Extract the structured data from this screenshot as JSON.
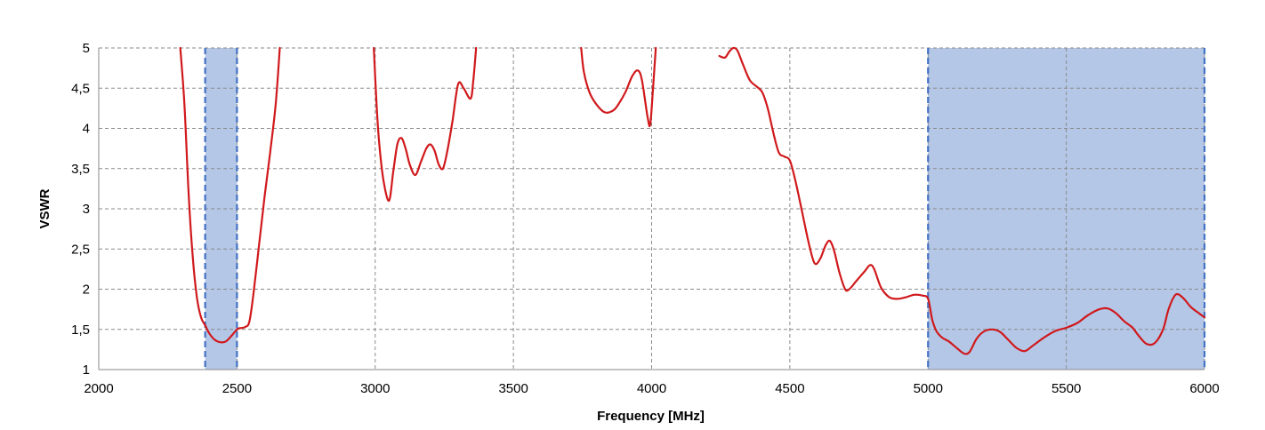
{
  "chart_data": {
    "type": "line",
    "title": "",
    "xlabel": "Frequency [MHz]",
    "ylabel": "VSWR",
    "xlim": [
      2000,
      6000
    ],
    "ylim": [
      1,
      5
    ],
    "x_ticks": [
      2000,
      2500,
      3000,
      3500,
      4000,
      4500,
      5000,
      5500,
      6000
    ],
    "x_tick_labels": [
      "2000",
      "2500",
      "3000",
      "3500",
      "4000",
      "4500",
      "5000",
      "5500",
      "6000"
    ],
    "y_ticks": [
      1,
      1.5,
      2,
      2.5,
      3,
      3.5,
      4,
      4.5,
      5
    ],
    "y_tick_labels": [
      "1",
      "1,5",
      "2",
      "2,5",
      "3",
      "3,5",
      "4",
      "4,5",
      "5"
    ],
    "grid": true,
    "grid_style": "dashed",
    "bands": [
      {
        "x": [
          2385,
          2500
        ],
        "color": "#b4c7e7",
        "edge_color": "#4472c4"
      },
      {
        "x": [
          5000,
          6000
        ],
        "color": "#b4c7e7",
        "edge_color": "#4472c4"
      }
    ],
    "series": [
      {
        "color": "#d0191c",
        "segments": [
          [
            [
              2295,
              5.0
            ],
            [
              2310,
              4.3
            ],
            [
              2325,
              3.2
            ],
            [
              2340,
              2.4
            ],
            [
              2355,
              1.9
            ],
            [
              2370,
              1.65
            ],
            [
              2385,
              1.55
            ],
            [
              2400,
              1.45
            ],
            [
              2420,
              1.37
            ],
            [
              2440,
              1.34
            ],
            [
              2460,
              1.35
            ],
            [
              2480,
              1.42
            ],
            [
              2495,
              1.48
            ],
            [
              2505,
              1.51
            ],
            [
              2530,
              1.53
            ],
            [
              2545,
              1.6
            ],
            [
              2560,
              1.95
            ],
            [
              2580,
              2.55
            ],
            [
              2600,
              3.15
            ],
            [
              2620,
              3.7
            ],
            [
              2640,
              4.3
            ],
            [
              2655,
              5.0
            ]
          ],
          [
            [
              2995,
              5.0
            ],
            [
              3005,
              4.3
            ],
            [
              3015,
              3.8
            ],
            [
              3030,
              3.35
            ],
            [
              3050,
              3.1
            ],
            [
              3065,
              3.45
            ],
            [
              3080,
              3.8
            ],
            [
              3095,
              3.88
            ],
            [
              3110,
              3.75
            ],
            [
              3125,
              3.55
            ],
            [
              3145,
              3.42
            ],
            [
              3165,
              3.58
            ],
            [
              3185,
              3.75
            ],
            [
              3200,
              3.8
            ],
            [
              3215,
              3.72
            ],
            [
              3230,
              3.55
            ],
            [
              3245,
              3.5
            ],
            [
              3260,
              3.7
            ],
            [
              3280,
              4.1
            ],
            [
              3300,
              4.55
            ],
            [
              3320,
              4.5
            ],
            [
              3345,
              4.37
            ],
            [
              3355,
              4.6
            ],
            [
              3365,
              5.0
            ]
          ],
          [
            [
              3745,
              5.0
            ],
            [
              3755,
              4.7
            ],
            [
              3775,
              4.45
            ],
            [
              3800,
              4.3
            ],
            [
              3830,
              4.2
            ],
            [
              3860,
              4.22
            ],
            [
              3880,
              4.3
            ],
            [
              3905,
              4.45
            ],
            [
              3930,
              4.65
            ],
            [
              3950,
              4.72
            ],
            [
              3965,
              4.6
            ],
            [
              3985,
              4.15
            ],
            [
              3995,
              4.05
            ],
            [
              4005,
              4.5
            ],
            [
              4015,
              5.0
            ]
          ],
          [
            [
              4245,
              4.9
            ],
            [
              4265,
              4.88
            ],
            [
              4280,
              4.95
            ],
            [
              4295,
              5.0
            ],
            [
              4310,
              4.97
            ],
            [
              4330,
              4.8
            ],
            [
              4355,
              4.6
            ],
            [
              4380,
              4.52
            ],
            [
              4400,
              4.45
            ],
            [
              4420,
              4.25
            ],
            [
              4440,
              3.95
            ],
            [
              4460,
              3.7
            ],
            [
              4480,
              3.65
            ],
            [
              4500,
              3.6
            ],
            [
              4520,
              3.35
            ],
            [
              4545,
              2.95
            ],
            [
              4570,
              2.55
            ],
            [
              4590,
              2.32
            ],
            [
              4610,
              2.38
            ],
            [
              4630,
              2.55
            ],
            [
              4645,
              2.6
            ],
            [
              4660,
              2.48
            ],
            [
              4680,
              2.2
            ],
            [
              4700,
              2.0
            ],
            [
              4715,
              2.0
            ],
            [
              4740,
              2.1
            ],
            [
              4770,
              2.22
            ],
            [
              4790,
              2.3
            ],
            [
              4805,
              2.25
            ],
            [
              4830,
              2.02
            ],
            [
              4860,
              1.9
            ],
            [
              4890,
              1.88
            ],
            [
              4920,
              1.9
            ],
            [
              4950,
              1.93
            ],
            [
              4980,
              1.92
            ],
            [
              5000,
              1.88
            ],
            [
              5015,
              1.62
            ],
            [
              5030,
              1.48
            ],
            [
              5050,
              1.4
            ],
            [
              5075,
              1.35
            ],
            [
              5100,
              1.28
            ],
            [
              5130,
              1.2
            ],
            [
              5150,
              1.22
            ],
            [
              5175,
              1.38
            ],
            [
              5200,
              1.47
            ],
            [
              5230,
              1.5
            ],
            [
              5260,
              1.47
            ],
            [
              5290,
              1.37
            ],
            [
              5320,
              1.27
            ],
            [
              5350,
              1.23
            ],
            [
              5380,
              1.3
            ],
            [
              5420,
              1.4
            ],
            [
              5460,
              1.48
            ],
            [
              5500,
              1.52
            ],
            [
              5540,
              1.58
            ],
            [
              5580,
              1.68
            ],
            [
              5620,
              1.75
            ],
            [
              5650,
              1.76
            ],
            [
              5680,
              1.7
            ],
            [
              5710,
              1.6
            ],
            [
              5740,
              1.52
            ],
            [
              5760,
              1.43
            ],
            [
              5790,
              1.32
            ],
            [
              5820,
              1.33
            ],
            [
              5850,
              1.5
            ],
            [
              5870,
              1.75
            ],
            [
              5895,
              1.93
            ],
            [
              5920,
              1.9
            ],
            [
              5950,
              1.78
            ],
            [
              5980,
              1.7
            ],
            [
              6000,
              1.65
            ]
          ]
        ]
      }
    ]
  }
}
